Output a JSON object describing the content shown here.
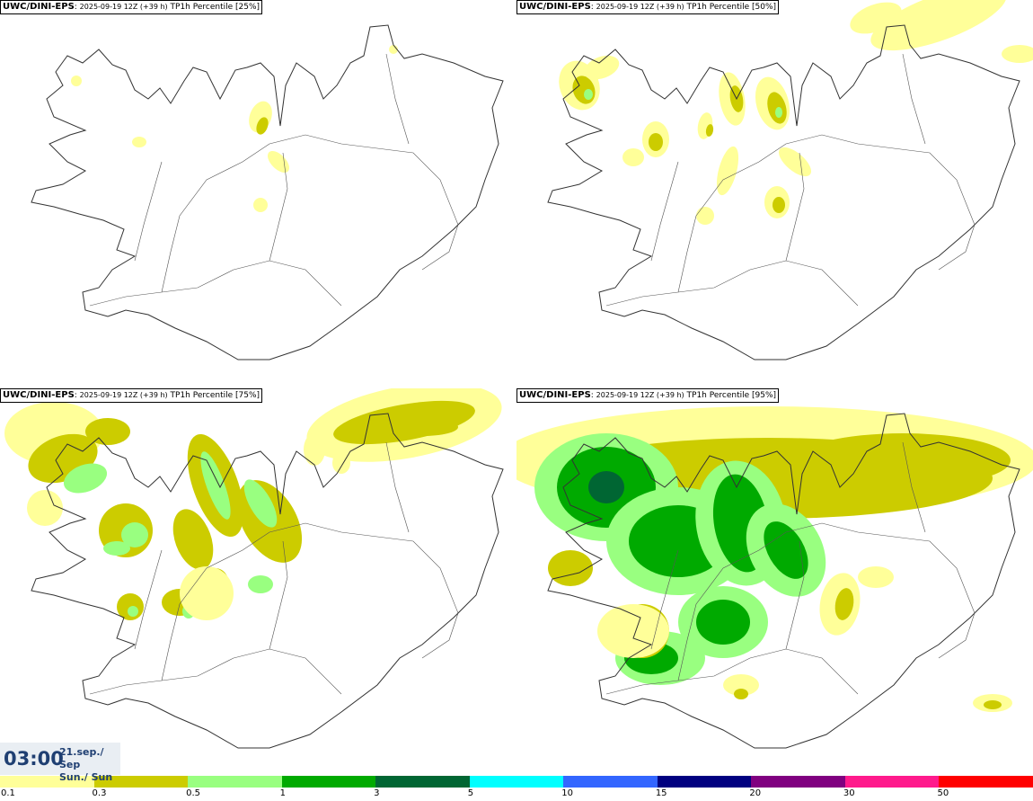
{
  "panels": [
    {
      "model": "UWC/DINI-EPS",
      "run": "2025-09-19 12Z (+39 h)",
      "field": "TP1h Percentile [25%]",
      "percentile": 25
    },
    {
      "model": "UWC/DINI-EPS",
      "run": "2025-09-19 12Z (+39 h)",
      "field": "TP1h Percentile [50%]",
      "percentile": 50
    },
    {
      "model": "UWC/DINI-EPS",
      "run": "2025-09-19 12Z (+39 h)",
      "field": "TP1h Percentile [75%]",
      "percentile": 75
    },
    {
      "model": "UWC/DINI-EPS",
      "run": "2025-09-19 12Z (+39 h)",
      "field": "TP1h Percentile [95%]",
      "percentile": 95
    }
  ],
  "valid_time": "03:00",
  "valid_date_line1": "21.sep./ Sep",
  "valid_date_line2": "Sun./ Sun",
  "legend": {
    "colors": [
      "#ffff99",
      "#cccc00",
      "#99ff80",
      "#00aa00",
      "#006633",
      "#00ffff",
      "#3366ff",
      "#000080",
      "#800080",
      "#ff1a8c",
      "#ff0000"
    ],
    "ticks": [
      "0.1",
      "0.3",
      "0.5",
      "1",
      "3",
      "5",
      "10",
      "15",
      "20",
      "30",
      "50"
    ]
  }
}
